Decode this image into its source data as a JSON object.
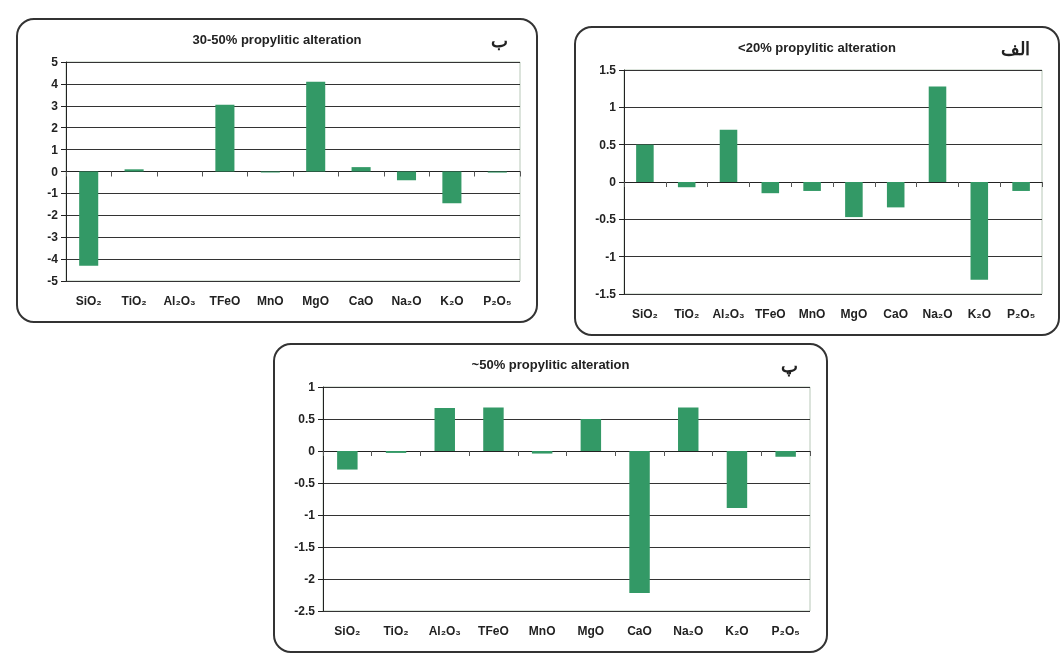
{
  "chart_data": [
    {
      "type": "bar",
      "title": "30-50% propylitic alteration",
      "annotations": [
        "ب"
      ],
      "categories": [
        "SiO₂",
        "TiO₂",
        "Al₂O₃",
        "TFeO",
        "MnO",
        "MgO",
        "CaO",
        "Na₂O",
        "K₂O",
        "P₂O₅"
      ],
      "values": [
        -4.3,
        0.1,
        0,
        3.05,
        -0.05,
        4.1,
        0.2,
        -0.4,
        -1.45,
        -0.05
      ],
      "color": "#339966",
      "ylim": [
        -5,
        5
      ],
      "yticks": [
        -5,
        -4,
        -3,
        -2,
        -1,
        0,
        1,
        2,
        3,
        4,
        5
      ],
      "grid": "y"
    },
    {
      "type": "bar",
      "title": "<20% propylitic alteration",
      "annotations": [
        "الف"
      ],
      "categories": [
        "SiO₂",
        "TiO₂",
        "Al₂O₃",
        "TFeO",
        "MnO",
        "MgO",
        "CaO",
        "Na₂O",
        "K₂O",
        "P₂O₅"
      ],
      "values": [
        0.5,
        -0.07,
        0.7,
        -0.15,
        -0.12,
        -0.47,
        -0.34,
        1.28,
        -1.31,
        -0.12
      ],
      "color": "#339966",
      "ylim": [
        -1.5,
        1.5
      ],
      "yticks": [
        -1.5,
        -1,
        -0.5,
        0,
        0.5,
        1,
        1.5
      ],
      "grid": "y"
    },
    {
      "type": "bar",
      "title": "~50% propylitic alteration",
      "annotations": [
        "پ"
      ],
      "categories": [
        "SiO₂",
        "TiO₂",
        "Al₂O₃",
        "TFeO",
        "MnO",
        "MgO",
        "CaO",
        "Na₂O",
        "K₂O",
        "P₂O₅"
      ],
      "values": [
        -0.29,
        -0.03,
        0.67,
        0.68,
        -0.04,
        0.5,
        -2.22,
        0.68,
        -0.89,
        -0.09
      ],
      "color": "#339966",
      "ylim": [
        -2.5,
        1
      ],
      "yticks": [
        -2.5,
        -2,
        -1.5,
        -1,
        -0.5,
        0,
        0.5,
        1
      ],
      "grid": "y"
    }
  ]
}
